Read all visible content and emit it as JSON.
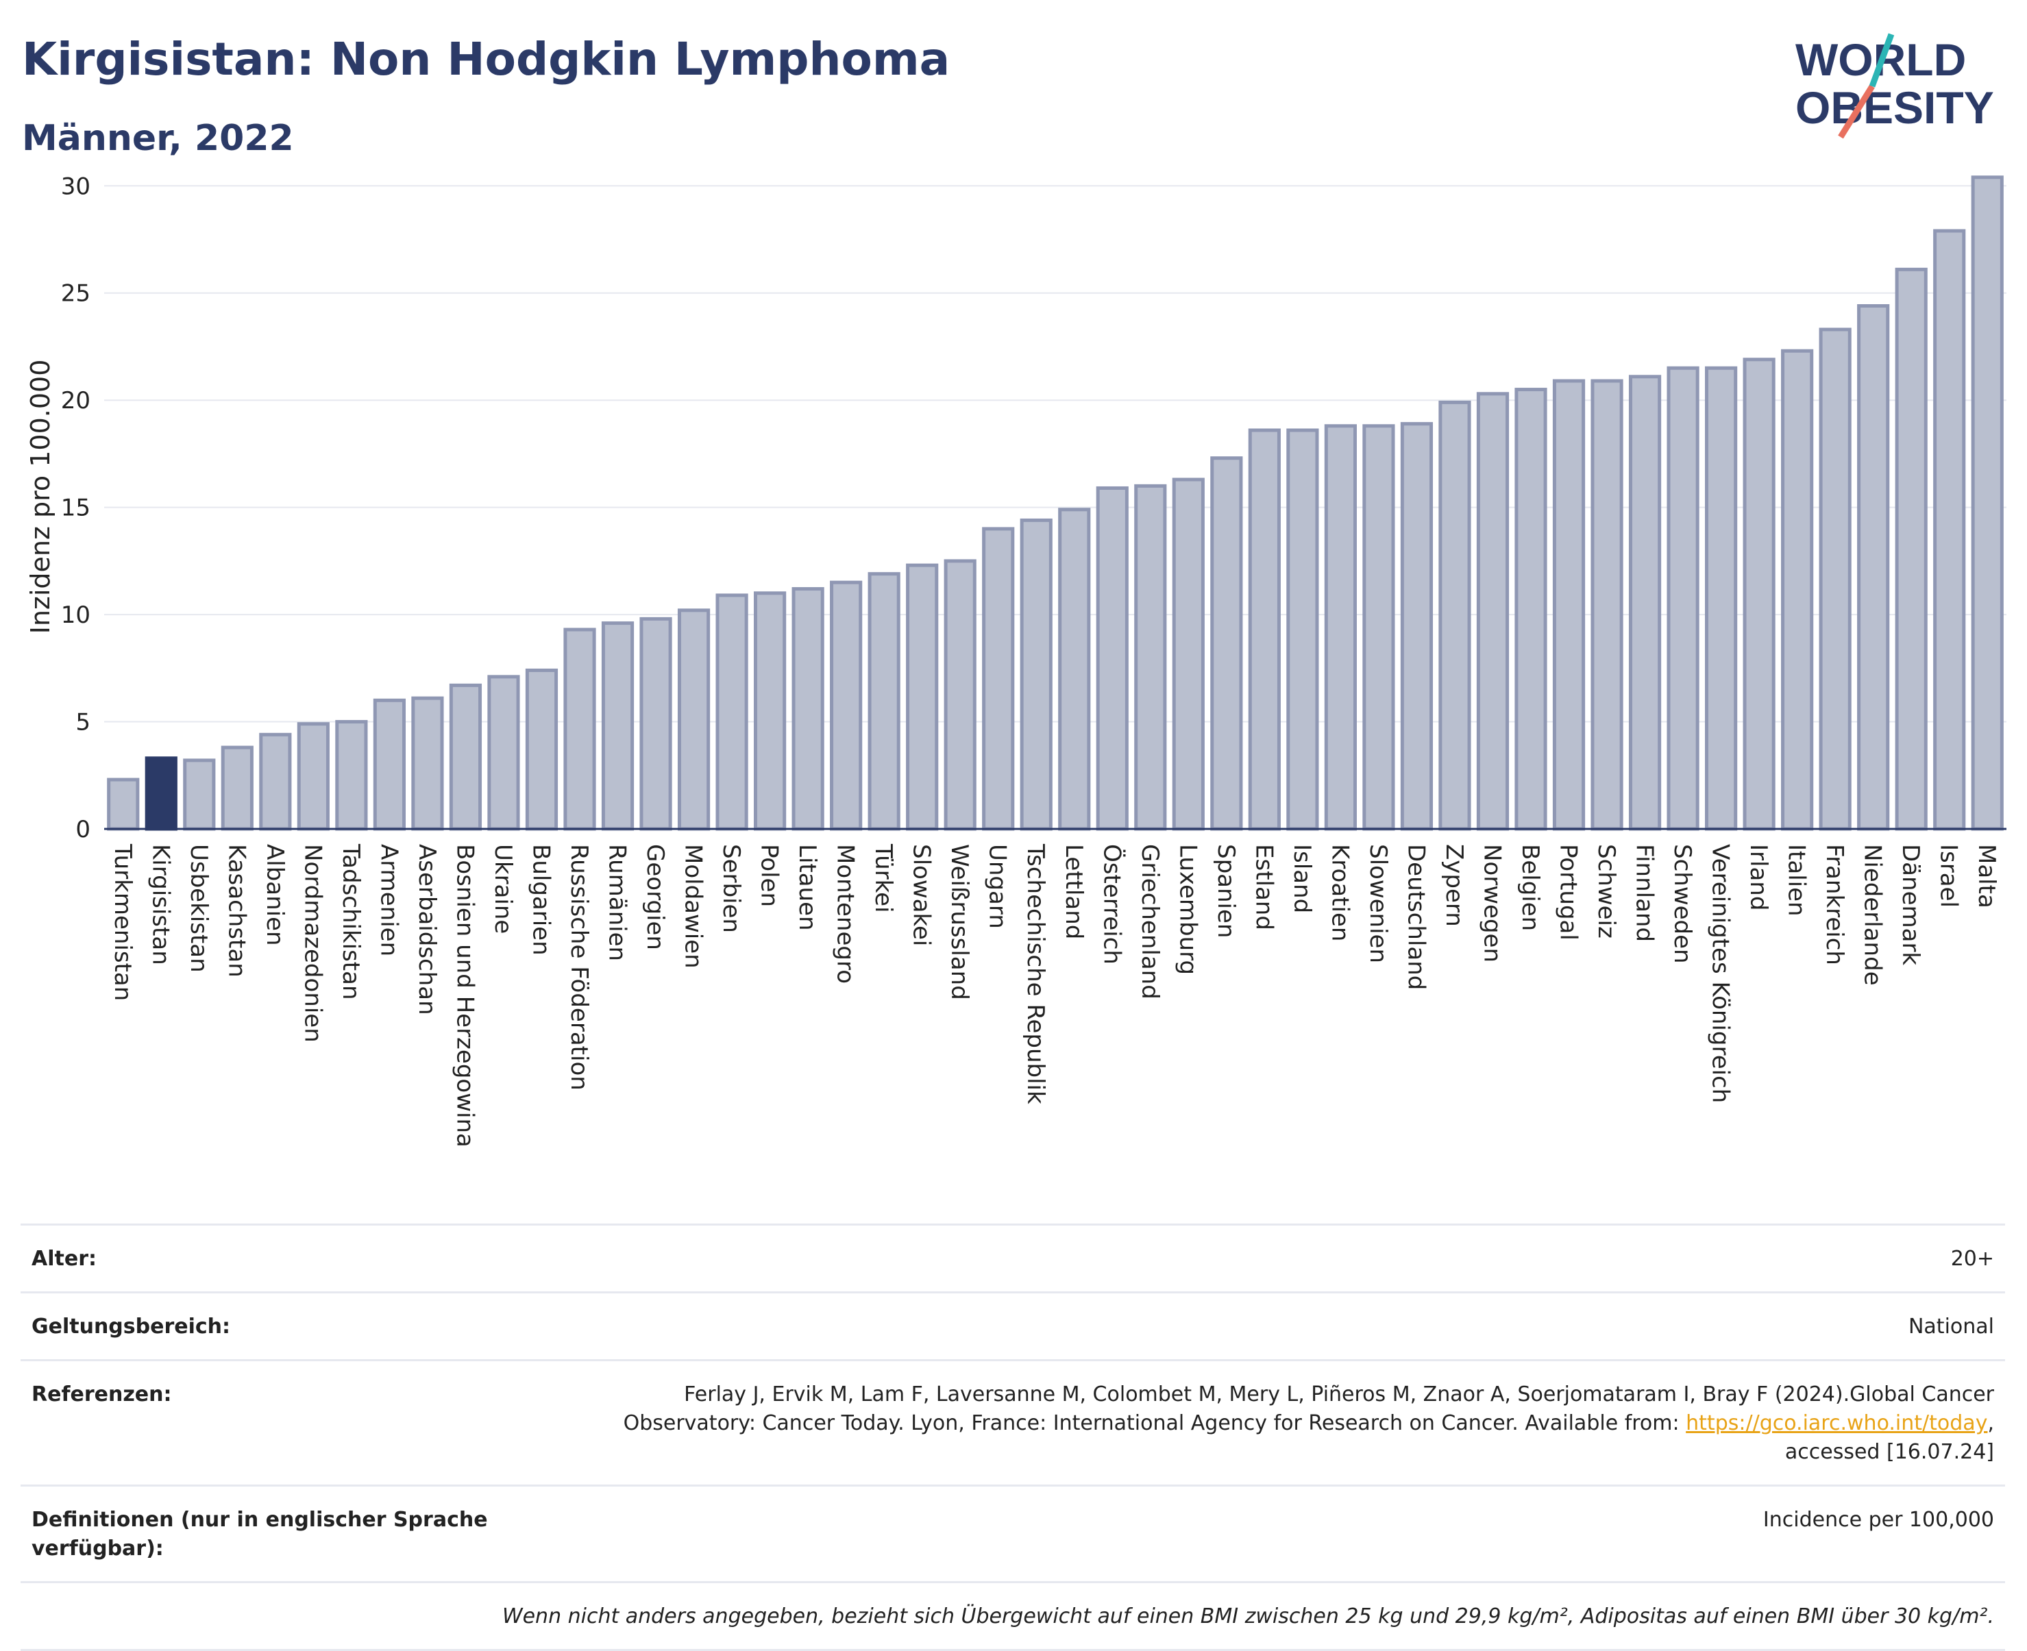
{
  "header": {
    "title": "Kirgisistan: Non Hodgkin Lymphoma",
    "subtitle": "Männer, 2022",
    "logo_line1": "WORLD",
    "logo_line2": "OBESITY"
  },
  "colors": {
    "bar": "#b9bfcf",
    "bar_border": "#8f97b3",
    "highlight": "#2b3a67",
    "text_dark": "#2b3a67",
    "logo_teal": "#2bb5b5",
    "logo_coral": "#e8705f",
    "link": "#e8a317"
  },
  "chart_data": {
    "type": "bar",
    "ylabel": "Inzidenz pro 100.000",
    "ylim": [
      0,
      31
    ],
    "yticks": [
      0,
      5,
      10,
      15,
      20,
      25,
      30
    ],
    "highlight": "Kirgisistan",
    "categories": [
      "Turkmenistan",
      "Kirgisistan",
      "Usbekistan",
      "Kasachstan",
      "Albanien",
      "Nordmazedonien",
      "Tadschikistan",
      "Armenien",
      "Aserbaidschan",
      "Bosnien und Herzegowina",
      "Ukraine",
      "Bulgarien",
      "Russische Föderation",
      "Rumänien",
      "Georgien",
      "Moldawien",
      "Serbien",
      "Polen",
      "Litauen",
      "Montenegro",
      "Türkei",
      "Slowakei",
      "Weißrussland",
      "Ungarn",
      "Tschechische Republik",
      "Lettland",
      "Österreich",
      "Griechenland",
      "Luxemburg",
      "Spanien",
      "Estland",
      "Island",
      "Kroatien",
      "Slowenien",
      "Deutschland",
      "Zypern",
      "Norwegen",
      "Belgien",
      "Portugal",
      "Schweiz",
      "Finnland",
      "Schweden",
      "Vereinigtes Königreich",
      "Irland",
      "Italien",
      "Frankreich",
      "Niederlande",
      "Dänemark",
      "Israel",
      "Malta"
    ],
    "values": [
      2.3,
      3.3,
      3.2,
      3.8,
      4.4,
      4.9,
      5.0,
      6.0,
      6.1,
      6.7,
      7.1,
      7.4,
      9.3,
      9.6,
      9.8,
      10.2,
      10.9,
      11.0,
      11.2,
      11.5,
      11.9,
      12.3,
      12.5,
      14.0,
      14.4,
      14.9,
      15.9,
      16.0,
      16.3,
      17.3,
      18.6,
      18.6,
      18.8,
      18.8,
      18.9,
      19.9,
      20.3,
      20.5,
      20.9,
      20.9,
      21.1,
      21.5,
      21.5,
      21.9,
      22.3,
      23.3,
      24.4,
      26.1,
      27.9,
      30.4
    ]
  },
  "meta": {
    "age_label": "Alter:",
    "age_value": "20+",
    "scope_label": "Geltungsbereich:",
    "scope_value": "National",
    "ref_label": "Referenzen:",
    "ref_text_1": "Ferlay J, Ervik M, Lam F, Laversanne M, Colombet M, Mery L, Piñeros M, Znaor A, Soerjomataram I, Bray F (2024).Global Cancer",
    "ref_text_2": "Observatory: Cancer Today. Lyon, France: International Agency for Research on Cancer. Available from: ",
    "ref_link": "https://gco.iarc.who.int/today",
    "ref_text_3": ",",
    "ref_text_4": "accessed [16.07.24]",
    "def_label": "Definitionen (nur in englischer Sprache verfügbar):",
    "def_value": "Incidence per 100,000",
    "note": "Wenn nicht anders angegeben, bezieht sich Übergewicht auf einen BMI zwischen 25 kg und 29,9 kg/m², Adipositas auf einen BMI über 30 kg/m²."
  }
}
